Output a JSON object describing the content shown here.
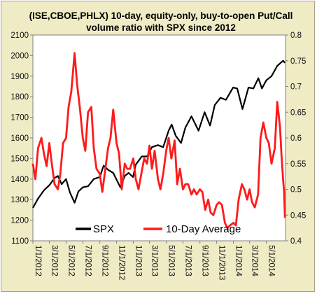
{
  "chart_data": {
    "type": "line",
    "title": "(ISE,CBOE,PHLX) 10-day, equity-only, buy-to-open Put/Call volume ratio with SPX since 2012",
    "title_lines": [
      "(ISE,CBOE,PHLX) 10-day, equity-only, buy-to-open Put/Call",
      "volume ratio with SPX since 2012"
    ],
    "x_tick_labels": [
      "1/1/2012",
      "3/1/2012",
      "5/1/2012",
      "7/1/2012",
      "9/1/2012",
      "11/1/2012",
      "1/1/2013",
      "3/1/2013",
      "5/1/2013",
      "7/1/2013",
      "9/1/2013",
      "11/1/2013",
      "1/1/2014",
      "3/1/2014",
      "5/1/2014"
    ],
    "y_left": {
      "ticks": [
        "1100",
        "1200",
        "1300",
        "1400",
        "1500",
        "1600",
        "1700",
        "1800",
        "1900",
        "2000",
        "2100"
      ],
      "ylim": [
        1100,
        2100
      ]
    },
    "y_right": {
      "ticks": [
        "0.4",
        "0.45",
        "0.5",
        "0.55",
        "0.6",
        "0.65",
        "0.7",
        "0.75",
        "0.8"
      ],
      "ylim": [
        0.4,
        0.8
      ]
    },
    "xlim": [
      "2012-01-01",
      "2014-07-10"
    ],
    "grid": false,
    "legend_position": "bottom-center",
    "series": [
      {
        "name": "SPX",
        "axis": "left",
        "color": "#000000",
        "points": [
          [
            "2012-01-01",
            1260
          ],
          [
            "2012-01-20",
            1305
          ],
          [
            "2012-02-10",
            1345
          ],
          [
            "2012-03-01",
            1370
          ],
          [
            "2012-03-20",
            1405
          ],
          [
            "2012-04-01",
            1415
          ],
          [
            "2012-04-15",
            1375
          ],
          [
            "2012-05-01",
            1400
          ],
          [
            "2012-05-15",
            1335
          ],
          [
            "2012-06-01",
            1285
          ],
          [
            "2012-06-15",
            1340
          ],
          [
            "2012-07-01",
            1360
          ],
          [
            "2012-07-20",
            1365
          ],
          [
            "2012-08-10",
            1400
          ],
          [
            "2012-09-01",
            1410
          ],
          [
            "2012-09-15",
            1465
          ],
          [
            "2012-10-01",
            1445
          ],
          [
            "2012-10-20",
            1430
          ],
          [
            "2012-11-15",
            1360
          ],
          [
            "2012-12-01",
            1415
          ],
          [
            "2012-12-15",
            1430
          ],
          [
            "2012-12-31",
            1410
          ],
          [
            "2013-01-10",
            1470
          ],
          [
            "2013-02-01",
            1510
          ],
          [
            "2013-02-20",
            1510
          ],
          [
            "2013-03-10",
            1555
          ],
          [
            "2013-04-01",
            1565
          ],
          [
            "2013-04-20",
            1555
          ],
          [
            "2013-05-10",
            1635
          ],
          [
            "2013-05-21",
            1665
          ],
          [
            "2013-06-05",
            1610
          ],
          [
            "2013-06-24",
            1575
          ],
          [
            "2013-07-10",
            1650
          ],
          [
            "2013-08-01",
            1705
          ],
          [
            "2013-08-27",
            1635
          ],
          [
            "2013-09-18",
            1725
          ],
          [
            "2013-10-08",
            1660
          ],
          [
            "2013-10-25",
            1760
          ],
          [
            "2013-11-15",
            1795
          ],
          [
            "2013-12-05",
            1785
          ],
          [
            "2013-12-31",
            1845
          ],
          [
            "2014-01-15",
            1840
          ],
          [
            "2014-02-03",
            1740
          ],
          [
            "2014-02-25",
            1845
          ],
          [
            "2014-03-15",
            1840
          ],
          [
            "2014-04-02",
            1890
          ],
          [
            "2014-04-15",
            1840
          ],
          [
            "2014-05-01",
            1880
          ],
          [
            "2014-05-20",
            1900
          ],
          [
            "2014-06-10",
            1950
          ],
          [
            "2014-07-01",
            1975
          ],
          [
            "2014-07-08",
            1965
          ]
        ]
      },
      {
        "name": "10-Day Average",
        "axis": "right",
        "color": "#ff1a1a",
        "points": [
          [
            "2012-01-01",
            0.55
          ],
          [
            "2012-01-10",
            0.52
          ],
          [
            "2012-01-20",
            0.58
          ],
          [
            "2012-02-01",
            0.6
          ],
          [
            "2012-02-10",
            0.57
          ],
          [
            "2012-02-20",
            0.545
          ],
          [
            "2012-03-01",
            0.59
          ],
          [
            "2012-03-10",
            0.55
          ],
          [
            "2012-03-20",
            0.51
          ],
          [
            "2012-04-01",
            0.5
          ],
          [
            "2012-04-10",
            0.53
          ],
          [
            "2012-04-20",
            0.59
          ],
          [
            "2012-05-01",
            0.6
          ],
          [
            "2012-05-10",
            0.66
          ],
          [
            "2012-05-20",
            0.69
          ],
          [
            "2012-06-01",
            0.765
          ],
          [
            "2012-06-10",
            0.705
          ],
          [
            "2012-06-20",
            0.66
          ],
          [
            "2012-07-01",
            0.6
          ],
          [
            "2012-07-10",
            0.575
          ],
          [
            "2012-07-20",
            0.65
          ],
          [
            "2012-08-01",
            0.66
          ],
          [
            "2012-08-10",
            0.58
          ],
          [
            "2012-08-20",
            0.54
          ],
          [
            "2012-09-01",
            0.53
          ],
          [
            "2012-09-10",
            0.495
          ],
          [
            "2012-09-20",
            0.535
          ],
          [
            "2012-10-01",
            0.58
          ],
          [
            "2012-10-10",
            0.6
          ],
          [
            "2012-10-20",
            0.655
          ],
          [
            "2012-11-01",
            0.59
          ],
          [
            "2012-11-10",
            0.57
          ],
          [
            "2012-11-20",
            0.5
          ],
          [
            "2012-12-01",
            0.55
          ],
          [
            "2012-12-10",
            0.54
          ],
          [
            "2012-12-20",
            0.54
          ],
          [
            "2013-01-01",
            0.56
          ],
          [
            "2013-01-10",
            0.52
          ],
          [
            "2013-01-20",
            0.5
          ],
          [
            "2013-02-01",
            0.535
          ],
          [
            "2013-02-10",
            0.56
          ],
          [
            "2013-02-20",
            0.55
          ],
          [
            "2013-03-01",
            0.585
          ],
          [
            "2013-03-10",
            0.54
          ],
          [
            "2013-03-20",
            0.575
          ],
          [
            "2013-04-01",
            0.52
          ],
          [
            "2013-04-10",
            0.5
          ],
          [
            "2013-04-20",
            0.53
          ],
          [
            "2013-05-01",
            0.575
          ],
          [
            "2013-05-10",
            0.6
          ],
          [
            "2013-05-20",
            0.56
          ],
          [
            "2013-06-01",
            0.595
          ],
          [
            "2013-06-10",
            0.51
          ],
          [
            "2013-06-20",
            0.54
          ],
          [
            "2013-07-01",
            0.5
          ],
          [
            "2013-07-10",
            0.51
          ],
          [
            "2013-07-20",
            0.51
          ],
          [
            "2013-08-01",
            0.49
          ],
          [
            "2013-08-10",
            0.5
          ],
          [
            "2013-08-20",
            0.49
          ],
          [
            "2013-09-01",
            0.5
          ],
          [
            "2013-09-10",
            0.495
          ],
          [
            "2013-09-20",
            0.46
          ],
          [
            "2013-10-01",
            0.48
          ],
          [
            "2013-10-10",
            0.455
          ],
          [
            "2013-10-20",
            0.45
          ],
          [
            "2013-11-01",
            0.47
          ],
          [
            "2013-11-10",
            0.475
          ],
          [
            "2013-11-20",
            0.47
          ],
          [
            "2013-12-01",
            0.435
          ],
          [
            "2013-12-10",
            0.425
          ],
          [
            "2013-12-20",
            0.43
          ],
          [
            "2014-01-01",
            0.435
          ],
          [
            "2014-01-10",
            0.43
          ],
          [
            "2014-01-20",
            0.48
          ],
          [
            "2014-02-01",
            0.51
          ],
          [
            "2014-02-10",
            0.5
          ],
          [
            "2014-02-20",
            0.48
          ],
          [
            "2014-03-01",
            0.5
          ],
          [
            "2014-03-10",
            0.475
          ],
          [
            "2014-03-20",
            0.465
          ],
          [
            "2014-04-01",
            0.49
          ],
          [
            "2014-04-10",
            0.6
          ],
          [
            "2014-04-20",
            0.63
          ],
          [
            "2014-05-01",
            0.6
          ],
          [
            "2014-05-10",
            0.59
          ],
          [
            "2014-05-20",
            0.55
          ],
          [
            "2014-06-01",
            0.58
          ],
          [
            "2014-06-10",
            0.67
          ],
          [
            "2014-06-20",
            0.62
          ],
          [
            "2014-06-25",
            0.57
          ],
          [
            "2014-07-01",
            0.52
          ],
          [
            "2014-07-05",
            0.495
          ],
          [
            "2014-07-08",
            0.445
          ]
        ]
      }
    ]
  }
}
